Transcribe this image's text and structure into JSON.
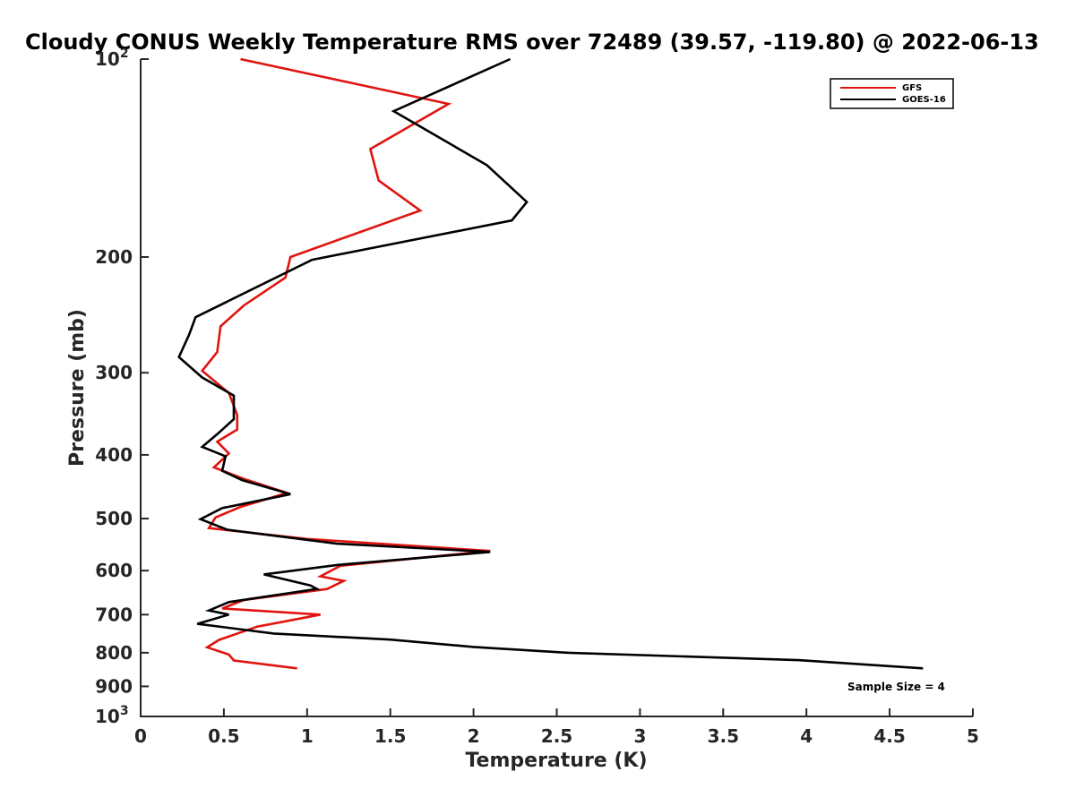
{
  "chart_data": {
    "type": "line",
    "title": "Cloudy CONUS Weekly Temperature RMS over 72489 (39.57, -119.80) @ 2022-06-13",
    "xlabel": "Temperature (K)",
    "ylabel": "Pressure (mb)",
    "xlim": [
      0,
      5
    ],
    "ylim": [
      100,
      1000
    ],
    "yscale": "log",
    "y_reversed": true,
    "x_ticks": [
      "0",
      "0.5",
      "1",
      "1.5",
      "2",
      "2.5",
      "3",
      "3.5",
      "4",
      "4.5",
      "5"
    ],
    "y_ticks": [
      {
        "value": 100,
        "base": "10",
        "exp": "2"
      },
      {
        "value": 200,
        "label": "200"
      },
      {
        "value": 300,
        "label": "300"
      },
      {
        "value": 400,
        "label": "400"
      },
      {
        "value": 500,
        "label": "500"
      },
      {
        "value": 600,
        "label": "600"
      },
      {
        "value": 700,
        "label": "700"
      },
      {
        "value": 800,
        "label": "800"
      },
      {
        "value": 900,
        "label": "900"
      },
      {
        "value": 1000,
        "base": "10",
        "exp": "3"
      }
    ],
    "grid": false,
    "legend_position": "top-right",
    "annotation": "Sample Size = 4",
    "series": [
      {
        "name": "GFS",
        "color": "#e0140f",
        "points": [
          [
            0.6,
            100
          ],
          [
            1.85,
            117
          ],
          [
            1.38,
            137
          ],
          [
            1.43,
            153
          ],
          [
            1.68,
            170
          ],
          [
            0.9,
            200
          ],
          [
            0.87,
            215
          ],
          [
            0.62,
            237
          ],
          [
            0.48,
            255
          ],
          [
            0.46,
            279
          ],
          [
            0.37,
            298
          ],
          [
            0.53,
            322
          ],
          [
            0.58,
            348
          ],
          [
            0.58,
            366
          ],
          [
            0.46,
            382
          ],
          [
            0.53,
            398
          ],
          [
            0.44,
            418
          ],
          [
            0.62,
            435
          ],
          [
            0.88,
            457
          ],
          [
            0.6,
            480
          ],
          [
            0.45,
            498
          ],
          [
            0.41,
            517
          ],
          [
            1.0,
            537
          ],
          [
            2.1,
            560
          ],
          [
            1.2,
            590
          ],
          [
            1.08,
            612
          ],
          [
            1.22,
            622
          ],
          [
            1.12,
            640
          ],
          [
            0.62,
            665
          ],
          [
            0.49,
            685
          ],
          [
            1.08,
            700
          ],
          [
            0.7,
            730
          ],
          [
            0.47,
            765
          ],
          [
            0.4,
            785
          ],
          [
            0.53,
            805
          ],
          [
            0.56,
            822
          ],
          [
            0.94,
            845
          ]
        ]
      },
      {
        "name": "GOES-16",
        "color": "#000000",
        "points": [
          [
            2.22,
            100
          ],
          [
            1.52,
            120
          ],
          [
            2.08,
            145
          ],
          [
            2.32,
            165
          ],
          [
            2.23,
            176
          ],
          [
            1.03,
            202
          ],
          [
            0.33,
            247
          ],
          [
            0.29,
            263
          ],
          [
            0.23,
            284
          ],
          [
            0.37,
            305
          ],
          [
            0.56,
            325
          ],
          [
            0.56,
            353
          ],
          [
            0.46,
            372
          ],
          [
            0.37,
            389
          ],
          [
            0.51,
            402
          ],
          [
            0.49,
            423
          ],
          [
            0.61,
            437
          ],
          [
            0.9,
            459
          ],
          [
            0.49,
            482
          ],
          [
            0.36,
            501
          ],
          [
            0.52,
            520
          ],
          [
            1.18,
            546
          ],
          [
            2.1,
            562
          ],
          [
            1.19,
            588
          ],
          [
            0.74,
            608
          ],
          [
            1.02,
            632
          ],
          [
            1.06,
            640
          ],
          [
            0.53,
            670
          ],
          [
            0.41,
            690
          ],
          [
            0.53,
            700
          ],
          [
            0.34,
            723
          ],
          [
            0.8,
            748
          ],
          [
            1.5,
            764
          ],
          [
            2.0,
            784
          ],
          [
            2.57,
            800
          ],
          [
            3.95,
            821
          ],
          [
            4.7,
            845
          ]
        ]
      }
    ]
  }
}
